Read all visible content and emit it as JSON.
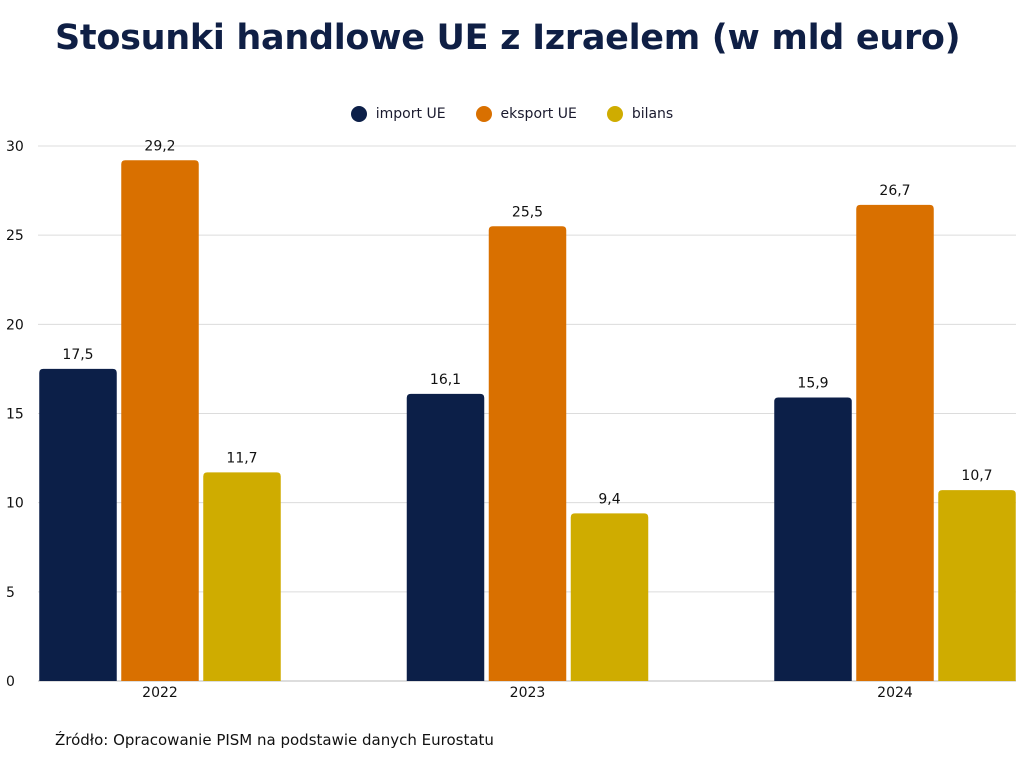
{
  "chart_data": {
    "type": "bar",
    "title": "Stosunki handlowe UE z Izraelem (w mld euro)",
    "categories": [
      "2022",
      "2023",
      "2024"
    ],
    "series": [
      {
        "name": "import UE",
        "values": [
          17.5,
          16.1,
          15.9
        ],
        "labels": [
          "17,5",
          "16,1",
          "15,9"
        ],
        "color": "#0c1f48"
      },
      {
        "name": "eksport UE",
        "values": [
          29.2,
          25.5,
          26.7
        ],
        "labels": [
          "29,2",
          "25,5",
          "26,7"
        ],
        "color": "#d97000"
      },
      {
        "name": "bilans",
        "values": [
          11.7,
          9.4,
          10.7
        ],
        "labels": [
          "11,7",
          "9,4",
          "10,7"
        ],
        "color": "#cfac00"
      }
    ],
    "ylim": [
      0,
      30
    ],
    "yticks": [
      "0",
      "5",
      "10",
      "15",
      "20",
      "25",
      "30"
    ],
    "grid": true,
    "legend_position": "top-center",
    "xlabel": "",
    "ylabel": "",
    "source": "Źródło: Opracowanie PISM na podstawie danych Eurostatu"
  }
}
